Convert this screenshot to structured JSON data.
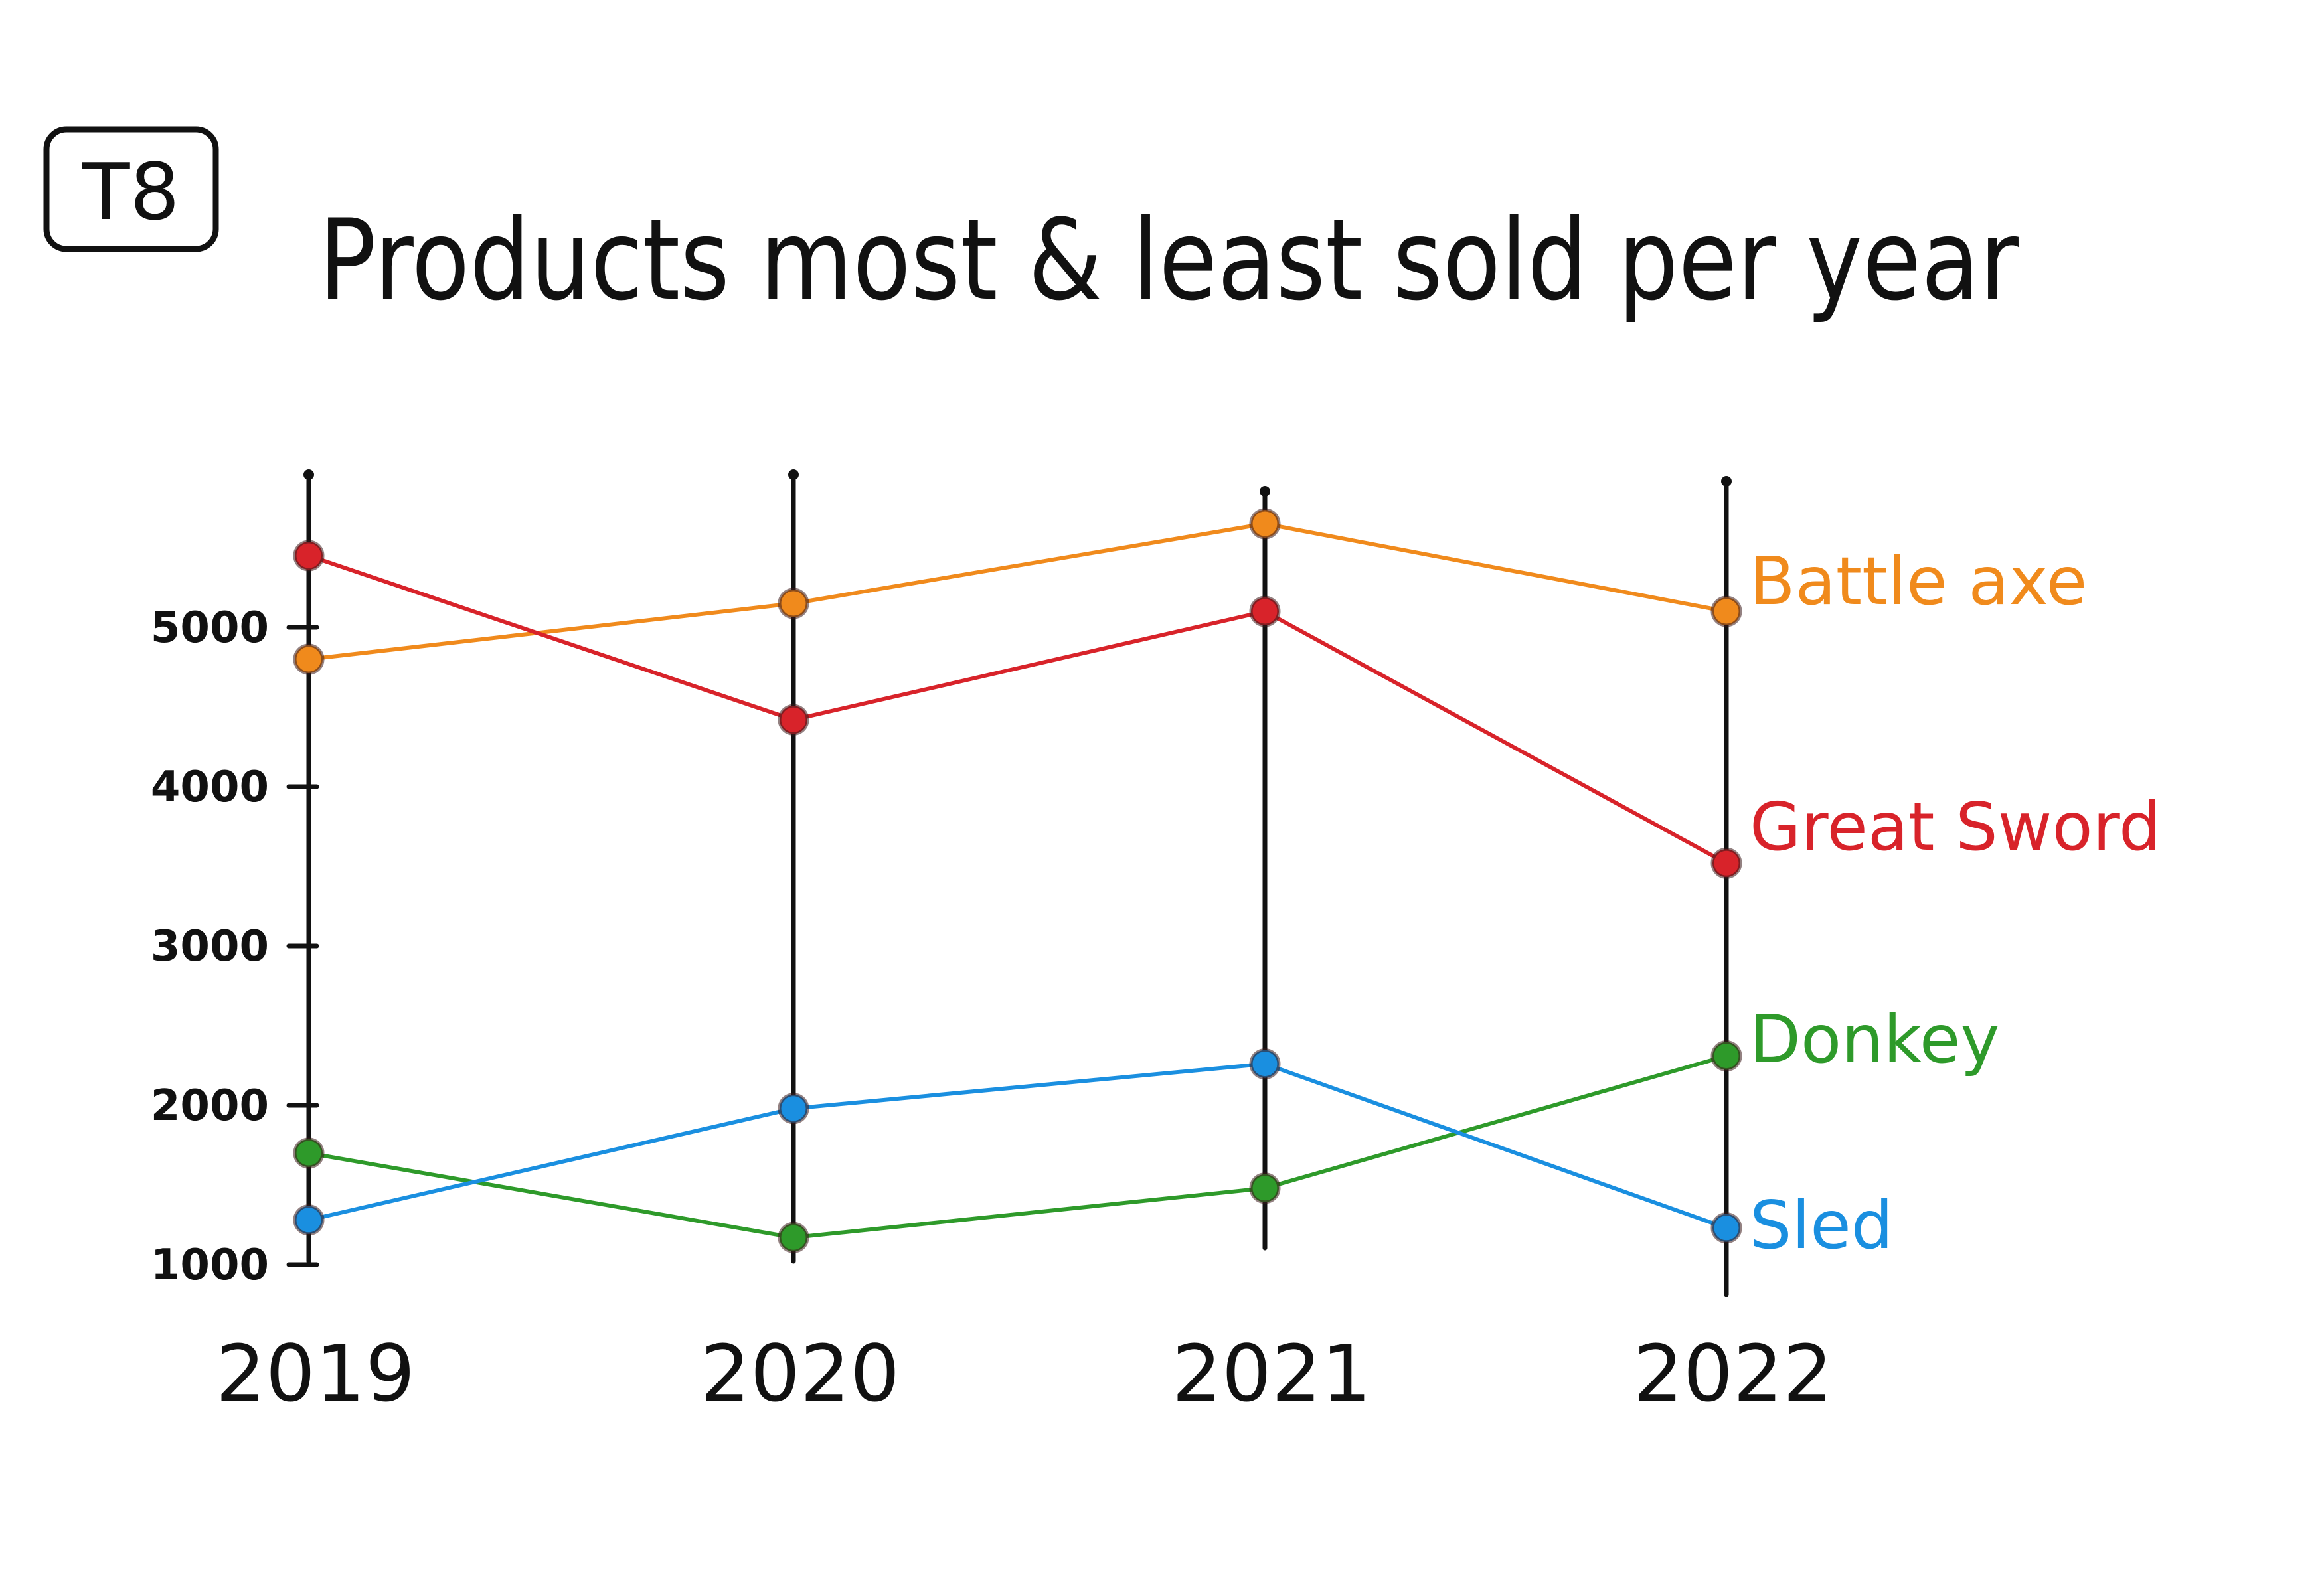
{
  "tag": "T8",
  "chart_data": {
    "type": "line",
    "title": "Products most & least sold per year",
    "xlabel": "",
    "ylabel": "",
    "categories": [
      "2019",
      "2020",
      "2021",
      "2022"
    ],
    "yticks": [
      1000,
      2000,
      3000,
      4000,
      5000
    ],
    "ylim": [
      1000,
      5950
    ],
    "grid": false,
    "legend": "direct labels at right of each line",
    "series": [
      {
        "name": "Battle axe",
        "color": "#f08a1c",
        "values": [
          4800,
          5150,
          5650,
          5100
        ]
      },
      {
        "name": "Great Sword",
        "color": "#d8232a",
        "values": [
          5450,
          4420,
          5100,
          3520
        ]
      },
      {
        "name": "Donkey",
        "color": "#2e9a2a",
        "values": [
          1700,
          1170,
          1480,
          2310
        ]
      },
      {
        "name": "Sled",
        "color": "#1a8fe0",
        "values": [
          1280,
          1980,
          2260,
          1230
        ]
      }
    ]
  }
}
